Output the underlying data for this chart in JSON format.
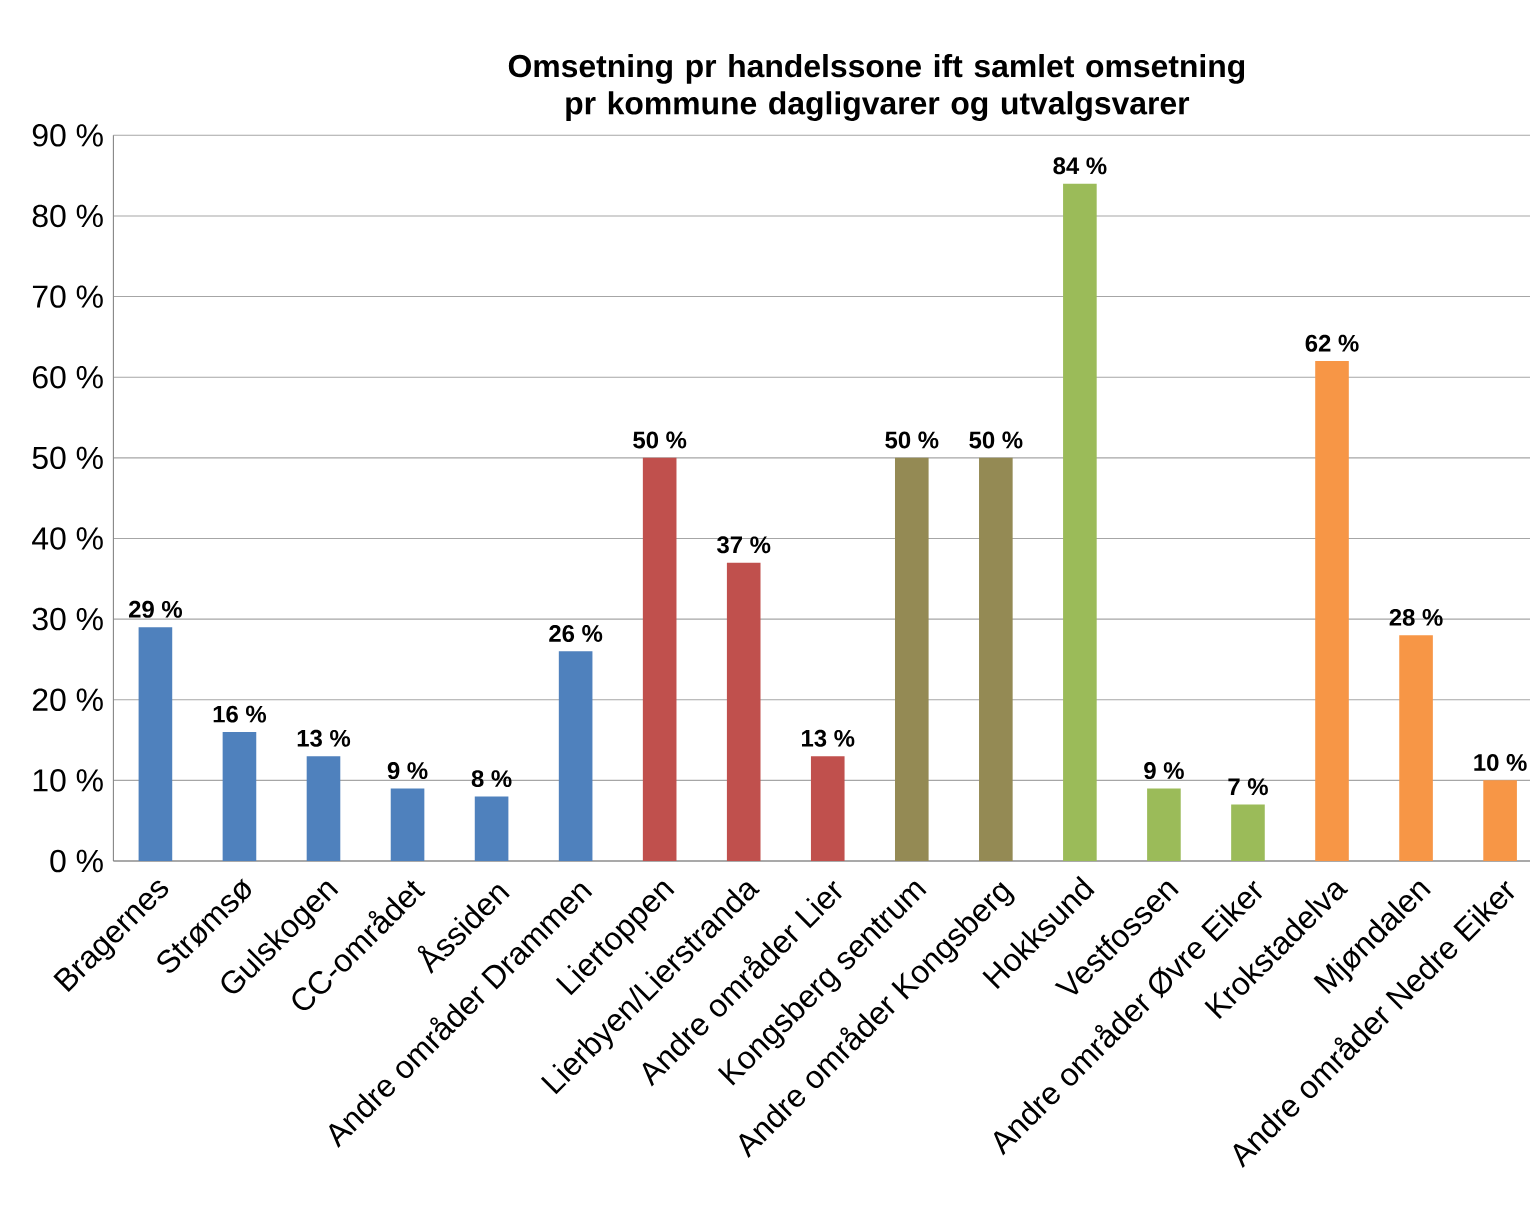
{
  "chart_data": {
    "type": "bar",
    "title": "Omsetning pr handelssone ift samlet omsetning pr kommune dagligvarer og utvalgsvarer",
    "categories": [
      "Bragernes",
      "Strømsø",
      "Gulskogen",
      "CC-området",
      "Åssiden",
      "Andre områder Drammen",
      "Liertoppen",
      "Lierbyen/Lierstranda",
      "Andre områder Lier",
      "Kongsberg sentrum",
      "Andre områder Kongsberg",
      "Hokksund",
      "Vestfossen",
      "Andre områder Øvre Eiker",
      "Krokstadelva",
      "Mjøndalen",
      "Andre områder Nedre Eiker"
    ],
    "values": [
      29,
      16,
      13,
      9,
      8,
      26,
      50,
      37,
      13,
      50,
      50,
      84,
      9,
      7,
      62,
      28,
      10
    ],
    "value_labels": [
      "29 %",
      "16 %",
      "13 %",
      "9 %",
      "8 %",
      "26 %",
      "50 %",
      "37 %",
      "13 %",
      "50 %",
      "50 %",
      "84 %",
      "9 %",
      "7 %",
      "62 %",
      "28 %",
      "10 %"
    ],
    "colors": [
      "#4f81bd",
      "#4f81bd",
      "#4f81bd",
      "#4f81bd",
      "#4f81bd",
      "#4f81bd",
      "#c0504d",
      "#c0504d",
      "#c0504d",
      "#948a54",
      "#948a54",
      "#9bbb59",
      "#9bbb59",
      "#9bbb59",
      "#f79646",
      "#f79646",
      "#f79646"
    ],
    "ylim": [
      0,
      90
    ],
    "yticks": [
      {
        "value": 0,
        "label": "0 %"
      },
      {
        "value": 10,
        "label": "10 %"
      },
      {
        "value": 20,
        "label": "20 %"
      },
      {
        "value": 30,
        "label": "30 %"
      },
      {
        "value": 40,
        "label": "40 %"
      },
      {
        "value": 50,
        "label": "50 %"
      },
      {
        "value": 60,
        "label": "60 %"
      },
      {
        "value": 70,
        "label": "70 %"
      },
      {
        "value": 80,
        "label": "80 %"
      },
      {
        "value": 90,
        "label": "90 %"
      }
    ],
    "grid": "y"
  }
}
